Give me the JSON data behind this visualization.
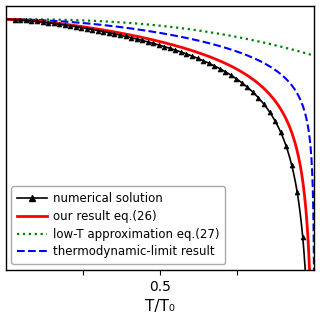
{
  "xlabel": "T/T₀",
  "xlim": [
    0.0,
    1.0
  ],
  "ylim": [
    -5.5,
    0.3
  ],
  "x_ticks": [
    0.25,
    0.5,
    0.75
  ],
  "x_tick_labels": [
    "",
    "0.5",
    ""
  ],
  "legend_entries": [
    "numerical solution",
    "our result eq.(26)",
    "low-T approximation eq.(27)",
    "thermodynamic-limit result"
  ],
  "legend_fontsize": 8.5,
  "xlabel_fontsize": 11,
  "tick_fontsize": 10
}
